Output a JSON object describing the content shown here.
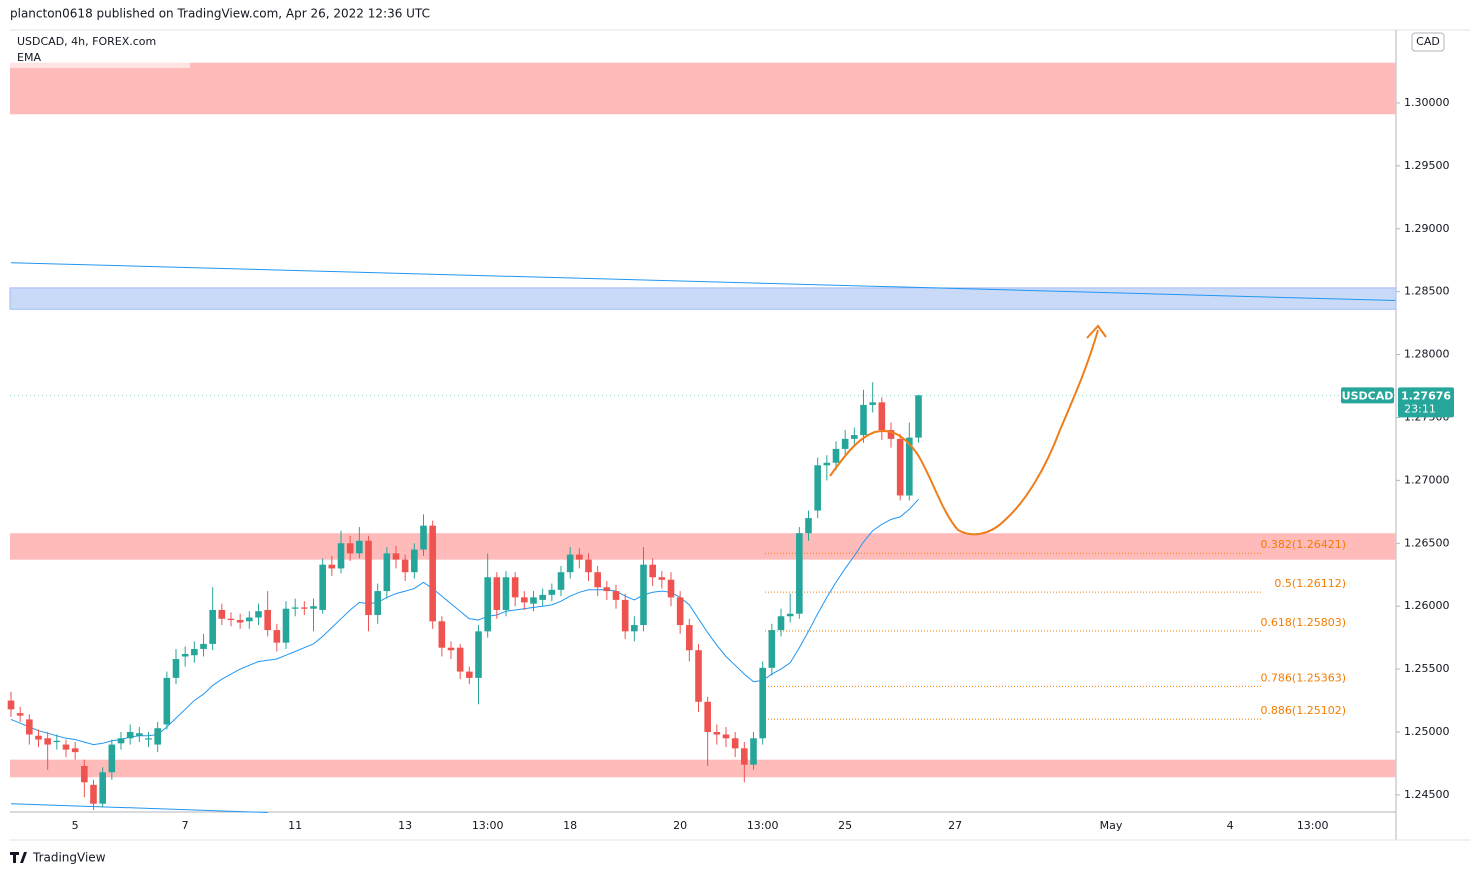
{
  "header": {
    "publisher": "plancton0618 published on TradingView.com, Apr 26, 2022 12:36 UTC",
    "footer": "TradingView"
  },
  "chart_data": {
    "type": "candlestick",
    "title": "USDCAD, 4h, FOREX.com",
    "currency": "CAD",
    "categories": [
      null,
      null,
      null,
      null,
      null,
      null,
      null,
      "5",
      null,
      null,
      null,
      null,
      null,
      null,
      null,
      null,
      null,
      null,
      null,
      "7",
      null,
      null,
      null,
      null,
      null,
      null,
      null,
      null,
      null,
      null,
      null,
      "11",
      null,
      null,
      null,
      null,
      null,
      null,
      null,
      null,
      null,
      null,
      null,
      "13",
      null,
      null,
      null,
      null,
      null,
      null,
      null,
      null,
      "13:00",
      null,
      null,
      null,
      null,
      null,
      null,
      null,
      null,
      "18",
      null,
      null,
      null,
      null,
      null,
      null,
      null,
      null,
      null,
      null,
      null,
      "20",
      null,
      null,
      null,
      null,
      null,
      null,
      null,
      null,
      "13:00",
      null,
      null,
      null,
      null,
      null,
      null,
      null,
      null,
      "25",
      null,
      null,
      null,
      null,
      null,
      null,
      null,
      null,
      null,
      null,
      null,
      "27",
      null,
      null,
      null,
      null,
      null,
      null,
      null,
      null,
      null,
      null,
      null,
      null,
      null,
      null,
      null,
      null,
      "May",
      null,
      null,
      null,
      null,
      null,
      null,
      null,
      null,
      null,
      null,
      null,
      null,
      "4",
      null,
      null,
      null,
      null,
      null,
      null,
      null,
      null,
      "13:00",
      null,
      null,
      null,
      null,
      null,
      null,
      null,
      null,
      null
    ],
    "open": [
      1.2525,
      1.2515,
      1.251,
      1.2497,
      1.2495,
      1.2492,
      1.249,
      1.2487,
      1.2473,
      1.2458,
      1.2443,
      1.2468,
      1.2491,
      1.2495,
      1.2497,
      1.2494,
      1.249,
      1.2506,
      1.2543,
      1.256,
      1.2561,
      1.2566,
      1.257,
      1.2597,
      1.259,
      1.2589,
      1.2588,
      1.2591,
      1.2597,
      1.2581,
      1.2571,
      1.2598,
      1.2599,
      1.2598,
      1.2597,
      1.2633,
      1.263,
      1.265,
      1.2642,
      1.2652,
      1.2593,
      1.2612,
      1.2642,
      1.2637,
      1.2627,
      1.2645,
      1.2664,
      1.2588,
      1.2567,
      1.2567,
      1.2548,
      1.2543,
      1.258,
      1.2623,
      1.2597,
      1.2623,
      1.2607,
      1.2602,
      1.2605,
      1.2609,
      1.2613,
      1.2627,
      1.2641,
      1.2637,
      1.2627,
      1.2615,
      1.2612,
      1.2605,
      1.258,
      1.2585,
      1.2633,
      1.2623,
      1.2621,
      1.2607,
      1.2585,
      1.2565,
      1.2524,
      1.25,
      1.2498,
      1.2495,
      1.2487,
      1.2474,
      1.2495,
      1.2551,
      1.2581,
      1.2592,
      1.2594,
      1.2658,
      1.2676,
      1.2712,
      1.2714,
      1.2725,
      1.2733,
      1.2736,
      1.276,
      1.2762,
      1.274,
      1.2733,
      1.2688,
      1.2734,
      null,
      null,
      null,
      null,
      null,
      null,
      null,
      null,
      null,
      null,
      null,
      null,
      null,
      null,
      null,
      null,
      null,
      null,
      null,
      null,
      null,
      null,
      null,
      null,
      null,
      null,
      null,
      null,
      null,
      null,
      null,
      null,
      null,
      null,
      null,
      null,
      null,
      null,
      null,
      null,
      null,
      null,
      null,
      null,
      null,
      null,
      null,
      null,
      null,
      null,
      null,
      null
    ],
    "high": [
      1.2532,
      1.252,
      1.2514,
      1.2502,
      1.25,
      1.2498,
      1.2494,
      1.2492,
      1.2478,
      1.2462,
      1.2472,
      1.2494,
      1.25,
      1.2506,
      1.2504,
      1.25,
      1.2508,
      1.2548,
      1.2566,
      1.2568,
      1.2572,
      1.2578,
      1.2615,
      1.2602,
      1.2595,
      1.2594,
      1.2596,
      1.2602,
      1.2612,
      1.2586,
      1.2604,
      1.2606,
      1.2604,
      1.2606,
      1.2638,
      1.264,
      1.266,
      1.2656,
      1.2663,
      1.2656,
      1.2618,
      1.2647,
      1.2648,
      1.2641,
      1.265,
      1.2673,
      1.2668,
      1.2592,
      1.2572,
      1.257,
      1.2552,
      1.2585,
      1.2642,
      1.2627,
      1.2628,
      1.2627,
      1.2612,
      1.2612,
      1.2614,
      1.2618,
      1.2632,
      1.2647,
      1.2646,
      1.2642,
      1.2632,
      1.262,
      1.2617,
      1.261,
      1.2592,
      1.2647,
      1.2638,
      1.2628,
      1.2627,
      1.2612,
      1.259,
      1.257,
      1.2528,
      1.2506,
      1.2504,
      1.25,
      1.2492,
      1.25,
      1.2556,
      1.2586,
      1.2598,
      1.261,
      1.2663,
      1.2676,
      1.2718,
      1.272,
      1.2731,
      1.274,
      1.2742,
      1.2772,
      1.2778,
      1.2766,
      1.2746,
      1.2737,
      1.2746,
      1.2768,
      null,
      null,
      null,
      null,
      null,
      null,
      null,
      null,
      null,
      null,
      null,
      null,
      null,
      null,
      null,
      null,
      null,
      null,
      null,
      null,
      null,
      null,
      null,
      null,
      null,
      null,
      null,
      null,
      null,
      null,
      null,
      null,
      null,
      null,
      null,
      null,
      null,
      null,
      null,
      null,
      null,
      null,
      null,
      null,
      null,
      null,
      null,
      null,
      null,
      null,
      null,
      null
    ],
    "low": [
      1.2512,
      1.2508,
      1.249,
      1.2488,
      1.247,
      1.2486,
      1.248,
      1.2478,
      1.2448,
      1.2438,
      1.244,
      1.2462,
      1.2486,
      1.249,
      1.2492,
      1.2488,
      1.2484,
      1.2502,
      1.2538,
      1.2552,
      1.2555,
      1.256,
      1.2565,
      1.2585,
      1.2584,
      1.2582,
      1.2582,
      1.2585,
      1.2576,
      1.2564,
      1.2566,
      1.2592,
      1.2593,
      1.258,
      1.2594,
      1.2624,
      1.2626,
      1.2636,
      1.2638,
      1.258,
      1.2586,
      1.2606,
      1.263,
      1.262,
      1.2622,
      1.264,
      1.2582,
      1.256,
      1.2558,
      1.2542,
      1.2538,
      1.2522,
      1.2575,
      1.259,
      1.2592,
      1.26,
      1.2597,
      1.2596,
      1.26,
      1.2604,
      1.2608,
      1.2622,
      1.263,
      1.262,
      1.2608,
      1.2605,
      1.2598,
      1.2574,
      1.2572,
      1.258,
      1.2616,
      1.2614,
      1.26,
      1.2578,
      1.2556,
      1.2516,
      1.2473,
      1.249,
      1.2488,
      1.248,
      1.246,
      1.247,
      1.249,
      1.2545,
      1.2576,
      1.2587,
      1.259,
      1.2652,
      1.267,
      1.27,
      1.2708,
      1.2719,
      1.2727,
      1.273,
      1.2754,
      1.2732,
      1.2726,
      1.2684,
      1.2684,
      1.273,
      null,
      null,
      null,
      null,
      null,
      null,
      null,
      null,
      null,
      null,
      null,
      null,
      null,
      null,
      null,
      null,
      null,
      null,
      null,
      null,
      null,
      null,
      null,
      null,
      null,
      null,
      null,
      null,
      null,
      null,
      null,
      null,
      null,
      null,
      null,
      null,
      null,
      null,
      null,
      null,
      null,
      null,
      null,
      null,
      null,
      null,
      null,
      null,
      null,
      null,
      null,
      null
    ],
    "close": [
      1.2518,
      1.2513,
      1.2498,
      1.2494,
      1.249,
      1.2493,
      1.2486,
      1.2484,
      1.246,
      1.2443,
      1.2468,
      1.249,
      1.2495,
      1.25,
      1.2499,
      1.2495,
      1.2503,
      1.2543,
      1.2558,
      1.2562,
      1.2566,
      1.257,
      1.2597,
      1.259,
      1.2589,
      1.2587,
      1.2591,
      1.2596,
      1.2581,
      1.2571,
      1.2598,
      1.2599,
      1.2598,
      1.26,
      1.2633,
      1.263,
      1.265,
      1.2642,
      1.2652,
      1.2593,
      1.2612,
      1.2642,
      1.2637,
      1.2627,
      1.2645,
      1.2664,
      1.2588,
      1.2567,
      1.2565,
      1.2548,
      1.2543,
      1.258,
      1.2623,
      1.2597,
      1.2623,
      1.2607,
      1.2603,
      1.2607,
      1.2609,
      1.2613,
      1.2627,
      1.2641,
      1.2637,
      1.2627,
      1.2615,
      1.2612,
      1.2605,
      1.258,
      1.2585,
      1.2633,
      1.2623,
      1.2621,
      1.2607,
      1.2585,
      1.2565,
      1.2524,
      1.25,
      1.2498,
      1.2495,
      1.2487,
      1.2474,
      1.2495,
      1.2551,
      1.2581,
      1.2592,
      1.2594,
      1.2658,
      1.267,
      1.2712,
      1.2714,
      1.2725,
      1.2733,
      1.2736,
      1.276,
      1.2762,
      1.274,
      1.2733,
      1.2688,
      1.2734,
      1.27676,
      null,
      null,
      null,
      null,
      null,
      null,
      null,
      null,
      null,
      null,
      null,
      null,
      null,
      null,
      null,
      null,
      null,
      null,
      null,
      null,
      null,
      null,
      null,
      null,
      null,
      null,
      null,
      null,
      null,
      null,
      null,
      null,
      null,
      null,
      null,
      null,
      null,
      null,
      null,
      null,
      null,
      null,
      null,
      null,
      null,
      null,
      null,
      null,
      null,
      null,
      null,
      null
    ],
    "series": [
      {
        "name": "EMA",
        "color": "#2196f3",
        "values": [
          1.251,
          1.2507,
          1.2504,
          1.2501,
          1.2499,
          1.2497,
          1.2495,
          1.2494,
          1.2492,
          1.249,
          1.2491,
          1.2493,
          1.2494,
          1.2496,
          1.2497,
          1.2497,
          1.2498,
          1.2504,
          1.2511,
          1.2518,
          1.2525,
          1.253,
          1.2537,
          1.2542,
          1.2546,
          1.255,
          1.2553,
          1.2556,
          1.2557,
          1.2558,
          1.2561,
          1.2564,
          1.2567,
          1.257,
          1.2576,
          1.2583,
          1.259,
          1.2597,
          1.2603,
          1.2602,
          1.2603,
          1.2607,
          1.261,
          1.2612,
          1.2614,
          1.2619,
          1.2614,
          1.2608,
          1.2602,
          1.2596,
          1.259,
          1.2589,
          1.2592,
          1.2593,
          1.2596,
          1.2597,
          1.2598,
          1.2599,
          1.26,
          1.2601,
          1.2604,
          1.2608,
          1.2611,
          1.2613,
          1.2613,
          1.2613,
          1.2612,
          1.2608,
          1.2605,
          1.2609,
          1.2611,
          1.2612,
          1.2611,
          1.2607,
          1.2601,
          1.259,
          1.2579,
          1.2569,
          1.256,
          1.2553,
          1.2546,
          1.254,
          1.2541,
          1.2546,
          1.255,
          1.2555,
          1.2567,
          1.258,
          1.2594,
          1.2607,
          1.2619,
          1.263,
          1.264,
          1.2651,
          1.266,
          1.2665,
          1.2669,
          1.2671,
          1.2677,
          1.2685,
          null,
          null,
          null,
          null,
          null,
          null,
          null,
          null,
          null,
          null,
          null,
          null,
          null,
          null,
          null,
          null,
          null,
          null,
          null,
          null,
          null,
          null,
          null,
          null,
          null,
          null,
          null,
          null,
          null,
          null,
          null,
          null,
          null,
          null,
          null,
          null,
          null,
          null,
          null,
          null,
          null,
          null,
          null,
          null,
          null,
          null,
          null,
          null,
          null,
          null,
          null,
          null
        ]
      }
    ],
    "up_color": "#26a69a",
    "down_color": "#ef5350",
    "ylim": [
      1.24364,
      1.3058
    ],
    "yticks": [
      {
        "value": 1.245,
        "label": "1.24500"
      },
      {
        "value": 1.25,
        "label": "1.25000"
      },
      {
        "value": 1.255,
        "label": "1.25500"
      },
      {
        "value": 1.26,
        "label": "1.26000"
      },
      {
        "value": 1.265,
        "label": "1.26500"
      },
      {
        "value": 1.27,
        "label": "1.27000"
      },
      {
        "value": 1.275,
        "label": "1.27500"
      },
      {
        "value": 1.28,
        "label": "1.28000"
      },
      {
        "value": 1.285,
        "label": "1.28500"
      },
      {
        "value": 1.29,
        "label": "1.29000"
      },
      {
        "value": 1.295,
        "label": "1.29500"
      },
      {
        "value": 1.3,
        "label": "1.30000"
      }
    ],
    "last_price": {
      "symbol": "USDCAD",
      "value": 1.27676,
      "countdown": "23:11"
    },
    "zones": [
      {
        "from": 1.2991,
        "to": 1.3032,
        "color": "#ffbaba"
      },
      {
        "from": 1.2836,
        "to": 1.2853,
        "color": "#c9daf8"
      },
      {
        "from": 1.2637,
        "to": 1.2658,
        "color": "#ffbaba"
      },
      {
        "from": 1.2464,
        "to": 1.2478,
        "color": "#ffbaba"
      }
    ],
    "trendlines": [
      {
        "from": [
          0,
          1.2873
        ],
        "to": [
          151,
          1.2843
        ],
        "color": "#2196f3"
      },
      {
        "from": [
          0,
          1.2443
        ],
        "to": [
          28,
          1.2436
        ],
        "color": "#2196f3"
      }
    ],
    "fib_levels": [
      {
        "label": "0.382(1.26421)",
        "value": 1.26421
      },
      {
        "label": "0.5(1.26112)",
        "value": 1.26112
      },
      {
        "label": "0.618(1.25803)",
        "value": 1.25803
      },
      {
        "label": "0.786(1.25363)",
        "value": 1.25363
      },
      {
        "label": "0.886(1.25102)",
        "value": 1.25102
      }
    ],
    "fib_color": "#f57c00"
  }
}
